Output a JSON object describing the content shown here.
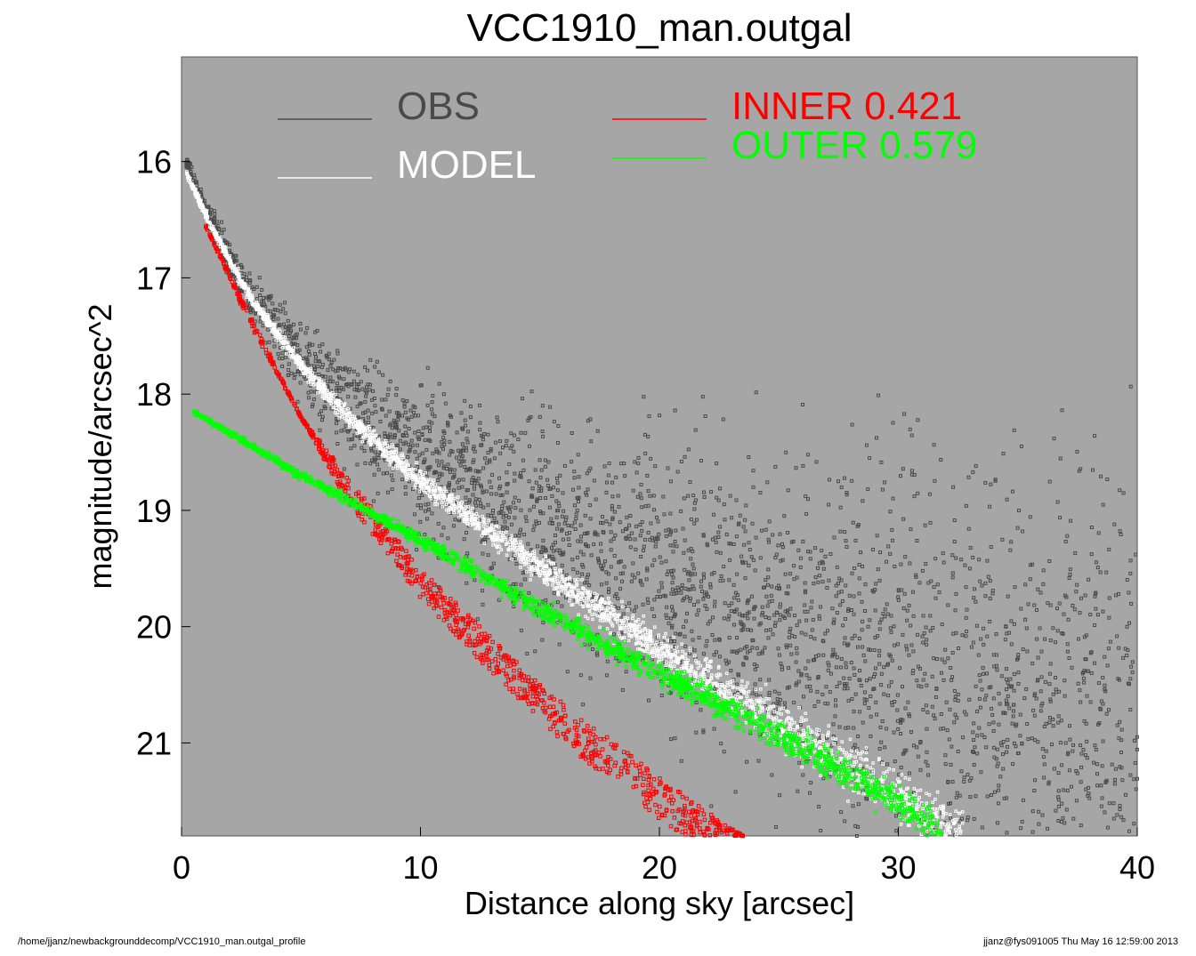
{
  "chart_data": {
    "type": "scatter",
    "title": "VCC1910_man.outgal",
    "xlabel": "Distance along sky [arcsec]",
    "ylabel": "magnitude/arcsec^2",
    "xlim": [
      0,
      40
    ],
    "ylim": [
      21.8,
      15.1
    ],
    "y_inverted": true,
    "xticks": [
      0,
      10,
      20,
      30,
      40
    ],
    "yticks": [
      16,
      17,
      18,
      19,
      20,
      21
    ],
    "plot_background": "#a6a6a6",
    "grid": false,
    "legend_placement": "top",
    "series": [
      {
        "name": "OBS",
        "color": "#4a4a4a",
        "marker": "open-square",
        "profile_points": [
          [
            0.2,
            16.0
          ],
          [
            1,
            16.4
          ],
          [
            2,
            16.85
          ],
          [
            3,
            17.2
          ],
          [
            5,
            17.7
          ],
          [
            7,
            18.1
          ],
          [
            10,
            18.55
          ],
          [
            15,
            19.15
          ],
          [
            20,
            19.6
          ],
          [
            25,
            20.0
          ],
          [
            30,
            20.35
          ],
          [
            35,
            20.65
          ],
          [
            40,
            20.9
          ]
        ],
        "scatter_range_at_40": [
          19.6,
          21.8
        ]
      },
      {
        "name": "MODEL",
        "color": "#ffffff",
        "marker": "open-square",
        "profile_points": [
          [
            0.2,
            16.1
          ],
          [
            1,
            16.45
          ],
          [
            2,
            16.85
          ],
          [
            3,
            17.2
          ],
          [
            5,
            17.75
          ],
          [
            7,
            18.2
          ],
          [
            10,
            18.75
          ],
          [
            15,
            19.5
          ],
          [
            20,
            20.2
          ],
          [
            25,
            20.85
          ],
          [
            30,
            21.45
          ],
          [
            32.5,
            21.8
          ]
        ]
      },
      {
        "name": "INNER",
        "weight": "0.421",
        "color": "#ff0000",
        "marker": "open-square",
        "profile_points": [
          [
            1,
            16.55
          ],
          [
            2,
            17.0
          ],
          [
            3,
            17.45
          ],
          [
            5,
            18.2
          ],
          [
            7,
            18.95
          ],
          [
            10,
            19.75
          ],
          [
            13,
            20.4
          ],
          [
            16,
            21.0
          ],
          [
            19,
            21.5
          ],
          [
            21,
            21.8
          ]
        ],
        "outer_edge_points": [
          [
            1,
            16.55
          ],
          [
            5,
            18.2
          ],
          [
            10,
            19.5
          ],
          [
            15,
            20.5
          ],
          [
            20,
            21.3
          ],
          [
            23.5,
            21.8
          ]
        ]
      },
      {
        "name": "OUTER",
        "weight": "0.579",
        "color": "#00ff00",
        "marker": "open-square",
        "profile_points": [
          [
            0.5,
            18.15
          ],
          [
            5,
            18.7
          ],
          [
            10,
            19.25
          ],
          [
            15,
            19.85
          ],
          [
            20,
            20.4
          ],
          [
            25,
            20.95
          ],
          [
            30,
            21.5
          ],
          [
            31.8,
            21.8
          ]
        ]
      }
    ]
  },
  "footer": {
    "left": "/home/jjanz/newbackgrounddecomp/VCC1910_man.outgal_profile",
    "right": "jjanz@fys091005  Thu May 16 12:59:00 2013"
  }
}
